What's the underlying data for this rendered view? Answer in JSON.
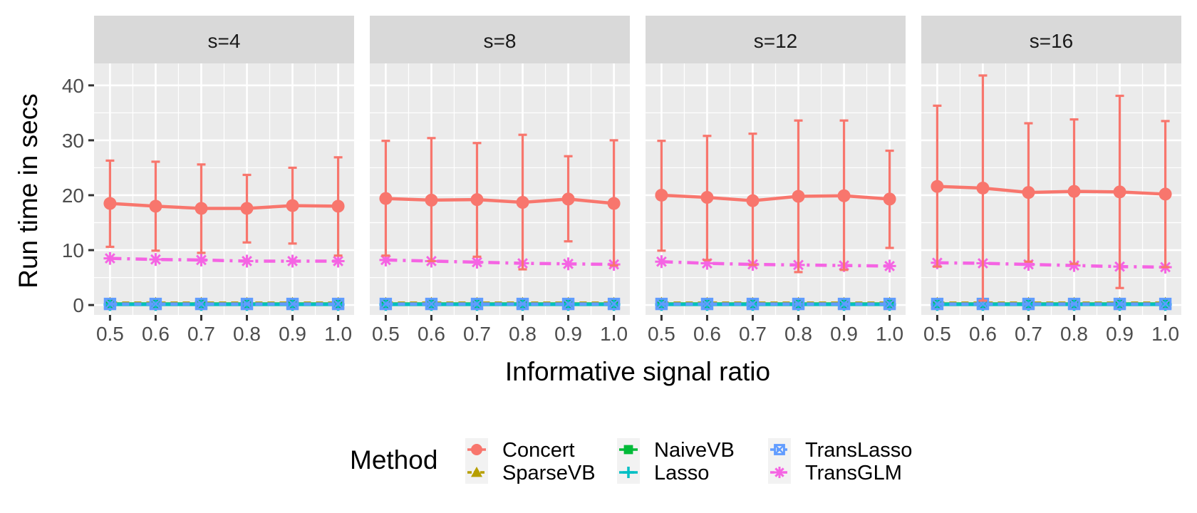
{
  "chart_data": {
    "type": "line",
    "facet_by": "s",
    "facets": [
      {
        "label": "s=4",
        "series": [
          {
            "method": "Concert",
            "values": [
              18.5,
              18.0,
              17.6,
              17.6,
              18.1,
              18.0
            ],
            "lower": [
              10.6,
              9.9,
              9.5,
              11.4,
              11.2,
              9.0
            ],
            "upper": [
              26.3,
              26.1,
              25.6,
              23.7,
              25.0,
              26.9
            ]
          },
          {
            "method": "SparseVB",
            "values": [
              0.35,
              0.35,
              0.35,
              0.35,
              0.35,
              0.35
            ]
          },
          {
            "method": "NaiveVB",
            "values": [
              0.2,
              0.2,
              0.2,
              0.2,
              0.2,
              0.2
            ]
          },
          {
            "method": "Lasso",
            "values": [
              0.1,
              0.1,
              0.1,
              0.1,
              0.1,
              0.1
            ]
          },
          {
            "method": "TransLasso",
            "values": [
              0.2,
              0.2,
              0.2,
              0.2,
              0.2,
              0.2
            ]
          },
          {
            "method": "TransGLM",
            "values": [
              8.5,
              8.3,
              8.2,
              8.0,
              8.0,
              8.0
            ]
          }
        ]
      },
      {
        "label": "s=8",
        "series": [
          {
            "method": "Concert",
            "values": [
              19.4,
              19.1,
              19.2,
              18.7,
              19.3,
              18.5
            ],
            "lower": [
              9.0,
              8.0,
              8.8,
              6.5,
              11.6,
              7.2
            ],
            "upper": [
              29.9,
              30.4,
              29.5,
              31.0,
              27.1,
              30.0
            ]
          },
          {
            "method": "SparseVB",
            "values": [
              0.35,
              0.35,
              0.35,
              0.35,
              0.35,
              0.35
            ]
          },
          {
            "method": "NaiveVB",
            "values": [
              0.2,
              0.2,
              0.2,
              0.2,
              0.2,
              0.2
            ]
          },
          {
            "method": "Lasso",
            "values": [
              0.1,
              0.1,
              0.1,
              0.1,
              0.1,
              0.1
            ]
          },
          {
            "method": "TransLasso",
            "values": [
              0.2,
              0.2,
              0.2,
              0.2,
              0.2,
              0.2
            ]
          },
          {
            "method": "TransGLM",
            "values": [
              8.2,
              8.0,
              7.8,
              7.6,
              7.5,
              7.4
            ]
          }
        ]
      },
      {
        "label": "s=12",
        "series": [
          {
            "method": "Concert",
            "values": [
              20.0,
              19.6,
              19.0,
              19.8,
              19.9,
              19.3
            ],
            "lower": [
              9.9,
              8.2,
              7.3,
              6.0,
              6.4,
              10.4
            ],
            "upper": [
              29.9,
              30.8,
              31.2,
              33.6,
              33.6,
              28.1
            ]
          },
          {
            "method": "SparseVB",
            "values": [
              0.35,
              0.35,
              0.35,
              0.35,
              0.35,
              0.35
            ]
          },
          {
            "method": "NaiveVB",
            "values": [
              0.2,
              0.2,
              0.2,
              0.2,
              0.2,
              0.2
            ]
          },
          {
            "method": "Lasso",
            "values": [
              0.1,
              0.1,
              0.1,
              0.1,
              0.1,
              0.1
            ]
          },
          {
            "method": "TransLasso",
            "values": [
              0.2,
              0.2,
              0.2,
              0.2,
              0.2,
              0.2
            ]
          },
          {
            "method": "TransGLM",
            "values": [
              7.9,
              7.6,
              7.4,
              7.3,
              7.2,
              7.1
            ]
          }
        ]
      },
      {
        "label": "s=16",
        "series": [
          {
            "method": "Concert",
            "values": [
              21.6,
              21.3,
              20.5,
              20.7,
              20.6,
              20.2
            ],
            "lower": [
              7.0,
              0.8,
              7.9,
              7.5,
              3.1,
              6.9
            ],
            "upper": [
              36.3,
              41.8,
              33.1,
              33.8,
              38.1,
              33.5
            ]
          },
          {
            "method": "SparseVB",
            "values": [
              0.35,
              0.35,
              0.35,
              0.35,
              0.35,
              0.35
            ]
          },
          {
            "method": "NaiveVB",
            "values": [
              0.2,
              0.2,
              0.2,
              0.2,
              0.2,
              0.2
            ]
          },
          {
            "method": "Lasso",
            "values": [
              0.1,
              0.1,
              0.1,
              0.1,
              0.1,
              0.1
            ]
          },
          {
            "method": "TransLasso",
            "values": [
              0.2,
              0.2,
              0.2,
              0.2,
              0.2,
              0.2
            ]
          },
          {
            "method": "TransGLM",
            "values": [
              7.7,
              7.6,
              7.4,
              7.2,
              7.0,
              6.9
            ]
          }
        ]
      }
    ],
    "x": [
      0.5,
      0.6,
      0.7,
      0.8,
      0.9,
      1.0
    ],
    "x_tick_labels": [
      "0.5",
      "0.6",
      "0.7",
      "0.8",
      "0.9",
      "1.0"
    ],
    "xlim": [
      0.465,
      1.035
    ],
    "ylim": [
      -1.8,
      44
    ],
    "y_ticks": [
      0,
      10,
      20,
      30,
      40
    ],
    "y_tick_labels": [
      "0",
      "10",
      "20",
      "30",
      "40"
    ],
    "xlabel": "Informative signal ratio",
    "ylabel": "Run time in secs",
    "legend": {
      "title": "Method",
      "position": "bottom",
      "items": [
        {
          "name": "Concert",
          "color": "#F8766D",
          "shape": "circle",
          "linetype": "solid"
        },
        {
          "name": "SparseVB",
          "color": "#B79F00",
          "shape": "triangle",
          "linetype": "dashed"
        },
        {
          "name": "NaiveVB",
          "color": "#00BA38",
          "shape": "square",
          "linetype": "solid"
        },
        {
          "name": "Lasso",
          "color": "#00BFC4",
          "shape": "plus",
          "linetype": "solid"
        },
        {
          "name": "TransLasso",
          "color": "#619CFF",
          "shape": "square-cross",
          "linetype": "dashed"
        },
        {
          "name": "TransGLM",
          "color": "#F564E3",
          "shape": "asterisk",
          "linetype": "dashdot"
        }
      ]
    }
  }
}
